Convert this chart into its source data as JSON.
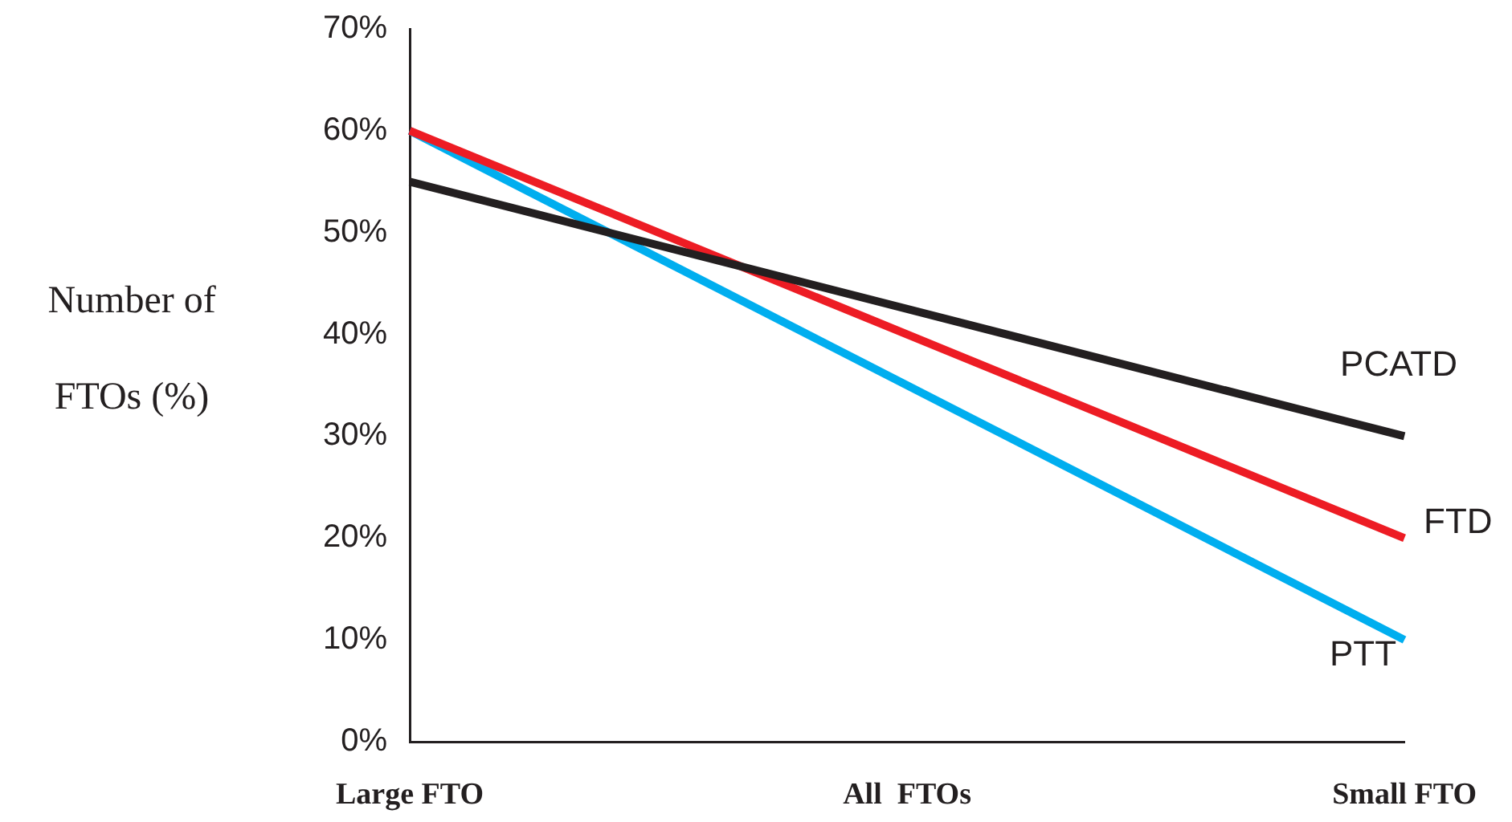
{
  "chart_data": {
    "type": "line",
    "ylabel": "Number of FTOs (%)",
    "categories": [
      "Large FTO",
      "All  FTOs",
      "Small FTO"
    ],
    "series": [
      {
        "name": "PCATD",
        "color": "#231f20",
        "values": [
          55,
          null,
          30
        ]
      },
      {
        "name": "FTD",
        "color": "#ed1c24",
        "values": [
          60,
          null,
          20
        ]
      },
      {
        "name": "PTT",
        "color": "#00aeef",
        "values": [
          60,
          null,
          10
        ]
      }
    ],
    "ylim": [
      0,
      70
    ],
    "yticks": [
      {
        "value": 0,
        "label": "0%"
      },
      {
        "value": 10,
        "label": "10%"
      },
      {
        "value": 20,
        "label": "20%"
      },
      {
        "value": 30,
        "label": "30%"
      },
      {
        "value": 40,
        "label": "40%"
      },
      {
        "value": 50,
        "label": "50%"
      },
      {
        "value": 60,
        "label": "60%"
      },
      {
        "value": 70,
        "label": "70%"
      }
    ],
    "grid": false,
    "legend": false,
    "marker": "none",
    "line_style": "solid"
  }
}
